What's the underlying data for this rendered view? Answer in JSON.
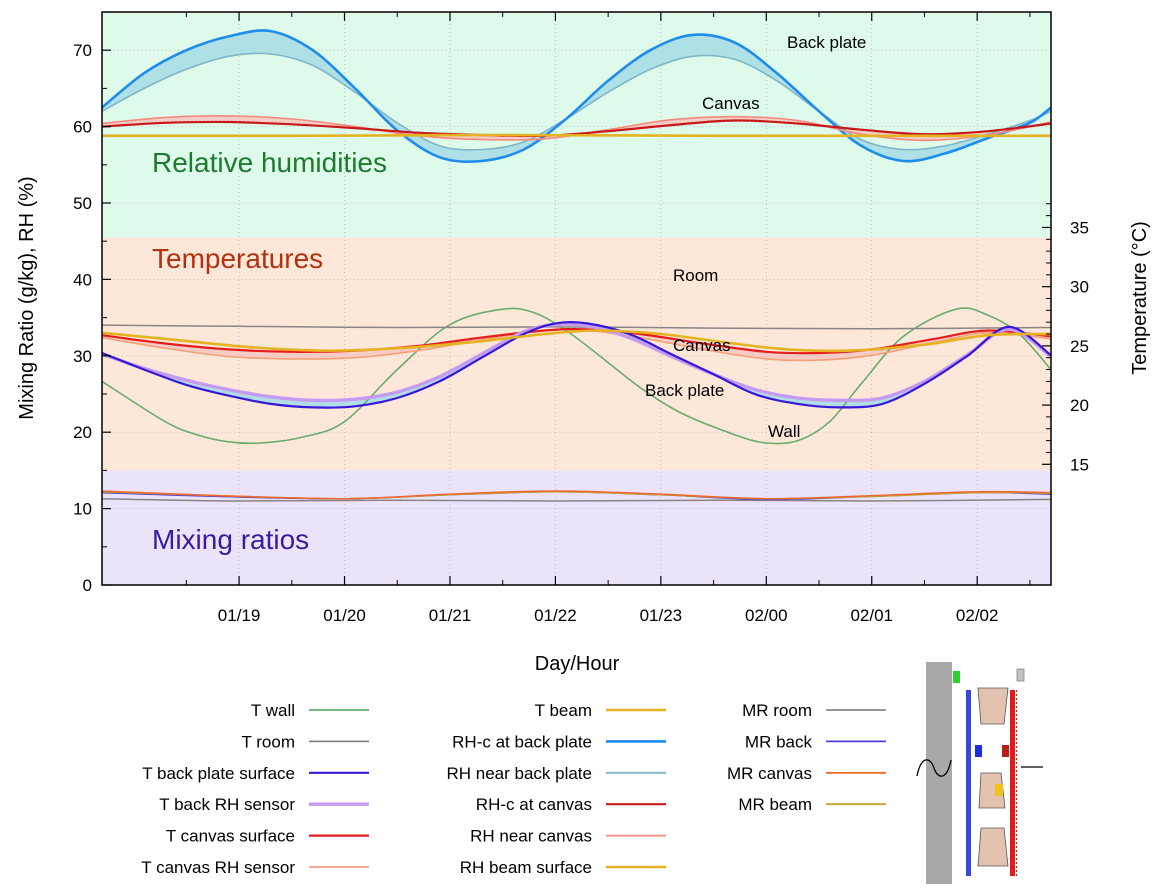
{
  "chart_data": {
    "type": "line",
    "xlabel": "Day/Hour",
    "ylabel_left": "Mixing Ratio (g/kg), RH (%)",
    "ylabel_right": "Temperature (°C)",
    "x_ticks": [
      "01/19",
      "01/20",
      "01/21",
      "01/22",
      "01/23",
      "02/00",
      "02/01",
      "02/02"
    ],
    "x_range_hours": [
      17.7,
      26.7
    ],
    "ylim_left": [
      0,
      75
    ],
    "y_ticks_left": [
      0,
      10,
      20,
      30,
      40,
      50,
      60,
      70
    ],
    "y_ticks_right": [
      15,
      20,
      25,
      30,
      35
    ],
    "temperature_mapping": {
      "left_at_14C": 14.25,
      "left_per_degC": 1.55
    },
    "bands": [
      {
        "label": "Relative humidities",
        "from": 45.5,
        "to": 75,
        "fill": "#ddfaeb",
        "color": "#1e7a2e"
      },
      {
        "label": "Temperatures",
        "from": 15,
        "to": 45.5,
        "fill": "#fce7d9",
        "color": "#b5300e"
      },
      {
        "label": "Mixing ratios",
        "from": 0,
        "to": 15,
        "fill": "#ebe3fa",
        "color": "#3a1a9e"
      }
    ],
    "annotations": [
      "Back plate",
      "Canvas",
      "Room",
      "Canvas",
      "Back plate",
      "Wall"
    ],
    "series": [
      {
        "name": "T wall",
        "unit": "°C",
        "color": "#68ad6c",
        "width": 1.6,
        "x": [
          17.7,
          18.3,
          18.6,
          18.9,
          19.2,
          19.6,
          20.0,
          20.5,
          21.0,
          21.5,
          21.8,
          22.1,
          22.4,
          22.8,
          23.2,
          23.7,
          24.0,
          24.3,
          24.6,
          24.9,
          25.3,
          25.8,
          26.1,
          26.4,
          26.7
        ],
        "y": [
          22.0,
          18.6,
          17.5,
          16.9,
          16.8,
          17.3,
          18.6,
          23.0,
          26.8,
          28.1,
          27.8,
          26.3,
          24.3,
          21.5,
          19.3,
          17.5,
          16.8,
          17.0,
          18.6,
          21.8,
          25.8,
          28.1,
          27.6,
          26.0,
          23.0
        ]
      },
      {
        "name": "T room",
        "unit": "°C",
        "color": "#8a8484",
        "width": 1.5,
        "x": [
          17.7,
          19.0,
          20.5,
          22.0,
          23.5,
          25.0,
          26.7
        ],
        "y": [
          26.75,
          26.65,
          26.55,
          26.6,
          26.5,
          26.45,
          26.55
        ]
      },
      {
        "name": "T back plate surface",
        "unit": "°C",
        "color": "#3718d6",
        "width": 2.2,
        "x": [
          17.7,
          18.1,
          18.5,
          18.9,
          19.3,
          19.7,
          20.1,
          20.5,
          20.9,
          21.3,
          21.7,
          22.0,
          22.3,
          22.7,
          23.1,
          23.5,
          23.9,
          24.3,
          24.7,
          25.1,
          25.5,
          25.9,
          26.3,
          26.7
        ],
        "y": [
          24.4,
          23.0,
          21.7,
          20.8,
          20.1,
          19.8,
          19.9,
          20.6,
          22.0,
          24.0,
          26.0,
          26.9,
          26.9,
          26.0,
          24.3,
          22.6,
          20.9,
          20.1,
          19.8,
          20.1,
          21.8,
          24.1,
          26.6,
          24.2
        ]
      },
      {
        "name": "T back RH sensor",
        "unit": "°C",
        "color": "#c59af3",
        "width": 3.4,
        "x": [
          17.7,
          18.1,
          18.5,
          18.9,
          19.3,
          19.7,
          20.1,
          20.5,
          20.9,
          21.3,
          21.7,
          22.0,
          22.3,
          22.7,
          23.1,
          23.5,
          23.9,
          24.3,
          24.7,
          25.1,
          25.5,
          25.9,
          26.3,
          26.7
        ],
        "y": [
          24.3,
          23.1,
          22.1,
          21.3,
          20.7,
          20.4,
          20.5,
          21.1,
          22.4,
          24.3,
          26.2,
          26.8,
          26.7,
          25.7,
          24.1,
          22.6,
          21.3,
          20.6,
          20.4,
          20.6,
          22.0,
          24.2,
          26.4,
          24.1
        ]
      },
      {
        "name": "T canvas surface",
        "unit": "°C",
        "color": "#e41d1d",
        "width": 2.2,
        "x": [
          17.7,
          18.3,
          18.9,
          19.5,
          20.1,
          20.7,
          21.3,
          21.9,
          22.3,
          22.8,
          23.4,
          24.0,
          24.5,
          25.0,
          25.6,
          26.1,
          26.7
        ],
        "y": [
          25.9,
          25.2,
          24.7,
          24.5,
          24.6,
          25.0,
          25.7,
          26.3,
          26.4,
          26.0,
          25.2,
          24.5,
          24.4,
          24.7,
          25.6,
          26.3,
          25.8
        ]
      },
      {
        "name": "T canvas RH sensor",
        "unit": "°C",
        "color": "#f3a078",
        "width": 1.6,
        "x": [
          17.7,
          18.3,
          18.9,
          19.5,
          20.1,
          20.7,
          21.3,
          21.9,
          22.3,
          22.8,
          23.4,
          24.0,
          24.5,
          25.0,
          25.6,
          26.1,
          26.7
        ],
        "y": [
          25.7,
          24.8,
          24.1,
          23.9,
          24.0,
          24.6,
          25.5,
          26.3,
          26.3,
          25.7,
          24.7,
          23.9,
          23.8,
          24.2,
          25.3,
          26.1,
          25.6
        ]
      },
      {
        "name": "T beam",
        "unit": "°C",
        "color": "#e5b321",
        "width": 2.6,
        "x": [
          17.7,
          18.4,
          19.1,
          19.8,
          20.5,
          21.2,
          21.9,
          22.4,
          23.0,
          23.6,
          24.2,
          24.8,
          25.5,
          26.1,
          26.7
        ],
        "y": [
          26.1,
          25.5,
          24.9,
          24.6,
          24.8,
          25.3,
          26.0,
          26.3,
          26.0,
          25.3,
          24.7,
          24.6,
          25.1,
          25.9,
          26.0
        ]
      },
      {
        "name": "RH-c at back plate",
        "unit": "%",
        "color": "#1e8ceb",
        "width": 2.6,
        "x": [
          17.7,
          18.1,
          18.5,
          18.9,
          19.3,
          19.7,
          20.1,
          20.5,
          20.9,
          21.3,
          21.7,
          22.1,
          22.5,
          22.9,
          23.3,
          23.7,
          24.1,
          24.5,
          24.9,
          25.3,
          25.7,
          26.1,
          26.5,
          26.7
        ],
        "y": [
          62.5,
          67.0,
          70.0,
          71.8,
          72.5,
          70.0,
          65.0,
          59.5,
          56.0,
          55.5,
          57.0,
          61.0,
          66.0,
          70.0,
          72.0,
          71.0,
          67.0,
          62.0,
          57.5,
          55.5,
          56.5,
          58.5,
          60.5,
          62.5
        ]
      },
      {
        "name": "RH near back plate",
        "unit": "%",
        "color": "#7eb6c8",
        "width": 1.6,
        "x": [
          17.7,
          18.1,
          18.5,
          18.9,
          19.3,
          19.7,
          20.1,
          20.5,
          20.9,
          21.3,
          21.7,
          22.1,
          22.5,
          22.9,
          23.3,
          23.7,
          24.1,
          24.5,
          24.9,
          25.3,
          25.7,
          26.1,
          26.5,
          26.7
        ],
        "y": [
          62.0,
          65.0,
          67.5,
          69.2,
          69.5,
          68.0,
          64.5,
          60.5,
          57.5,
          57.0,
          58.0,
          61.0,
          64.5,
          67.5,
          69.2,
          68.8,
          66.0,
          62.0,
          58.3,
          57.0,
          57.5,
          59.0,
          60.8,
          62.0
        ]
      },
      {
        "name": "RH-c at canvas",
        "unit": "%",
        "color": "#c81818",
        "width": 2.2,
        "x": [
          17.7,
          18.3,
          18.9,
          19.5,
          20.1,
          20.7,
          21.3,
          21.9,
          22.5,
          23.1,
          23.7,
          24.3,
          24.9,
          25.5,
          26.1,
          26.7
        ],
        "y": [
          60.0,
          60.5,
          60.6,
          60.3,
          59.8,
          59.2,
          58.9,
          58.8,
          59.4,
          60.2,
          60.8,
          60.4,
          59.6,
          59.0,
          59.4,
          60.4
        ]
      },
      {
        "name": "RH near canvas",
        "unit": "%",
        "color": "#f48a7e",
        "width": 1.6,
        "x": [
          17.7,
          18.3,
          18.9,
          19.5,
          20.1,
          20.7,
          21.3,
          21.9,
          22.5,
          23.1,
          23.7,
          24.3,
          24.9,
          25.5,
          26.1,
          26.7
        ],
        "y": [
          60.4,
          61.2,
          61.4,
          61.0,
          60.0,
          58.8,
          58.3,
          58.4,
          59.6,
          60.9,
          61.3,
          60.8,
          59.0,
          58.2,
          58.9,
          60.6
        ]
      },
      {
        "name": "RH beam surface",
        "unit": "%",
        "color": "#e5b321",
        "width": 2.6,
        "x": [
          17.7,
          19.5,
          21.5,
          23.5,
          25.5,
          26.7
        ],
        "y": [
          58.8,
          58.8,
          58.9,
          58.8,
          58.8,
          58.8
        ]
      },
      {
        "name": "MR room",
        "unit": "g/kg",
        "color": "#8a8484",
        "width": 1.5,
        "x": [
          17.7,
          19.0,
          20.5,
          22.0,
          23.5,
          25.0,
          26.7
        ],
        "y": [
          11.3,
          11.0,
          11.1,
          11.0,
          11.1,
          11.0,
          11.2
        ]
      },
      {
        "name": "MR back",
        "unit": "g/kg",
        "color": "#4a3fd6",
        "width": 1.5,
        "x": [
          17.7,
          18.8,
          20.0,
          21.0,
          22.0,
          23.0,
          24.0,
          25.0,
          26.0,
          26.7
        ],
        "y": [
          12.1,
          11.6,
          11.3,
          11.8,
          12.2,
          11.8,
          11.2,
          11.6,
          12.1,
          11.9
        ]
      },
      {
        "name": "MR canvas",
        "unit": "g/kg",
        "color": "#ec6a2f",
        "width": 1.5,
        "x": [
          17.7,
          18.8,
          20.0,
          21.0,
          22.0,
          23.0,
          24.0,
          25.0,
          26.0,
          26.7
        ],
        "y": [
          12.3,
          11.7,
          11.3,
          11.9,
          12.3,
          11.9,
          11.3,
          11.7,
          12.2,
          12.1
        ]
      },
      {
        "name": "MR beam",
        "unit": "g/kg",
        "color": "#c5a22a",
        "width": 1.5,
        "x": [
          17.7,
          18.8,
          20.0,
          21.0,
          22.0,
          23.0,
          24.0,
          25.0,
          26.0,
          26.7
        ],
        "y": [
          12.2,
          11.7,
          11.3,
          11.8,
          12.2,
          11.8,
          11.3,
          11.6,
          12.1,
          12.0
        ]
      }
    ],
    "fills": [
      {
        "between": [
          "RH-c at back plate",
          "RH near back plate"
        ],
        "color": "#a9dde6"
      },
      {
        "between": [
          "RH-c at canvas",
          "RH near canvas"
        ],
        "color": "#f6c9c2"
      },
      {
        "between": [
          "T back plate surface",
          "T back RH sensor"
        ],
        "color": "#a9dde6"
      },
      {
        "between": [
          "T canvas surface",
          "T canvas RH sensor"
        ],
        "color": "#f6c9c2"
      }
    ],
    "legend": [
      [
        "T wall",
        "T room",
        "T back plate surface",
        "T back RH sensor",
        "T canvas surface",
        "T canvas RH sensor"
      ],
      [
        "T beam",
        "RH-c at back plate",
        "RH near back plate",
        "RH-c at canvas",
        "RH near canvas",
        "RH beam surface"
      ],
      [
        "MR room",
        "MR back",
        "MR canvas",
        "MR beam"
      ]
    ]
  }
}
